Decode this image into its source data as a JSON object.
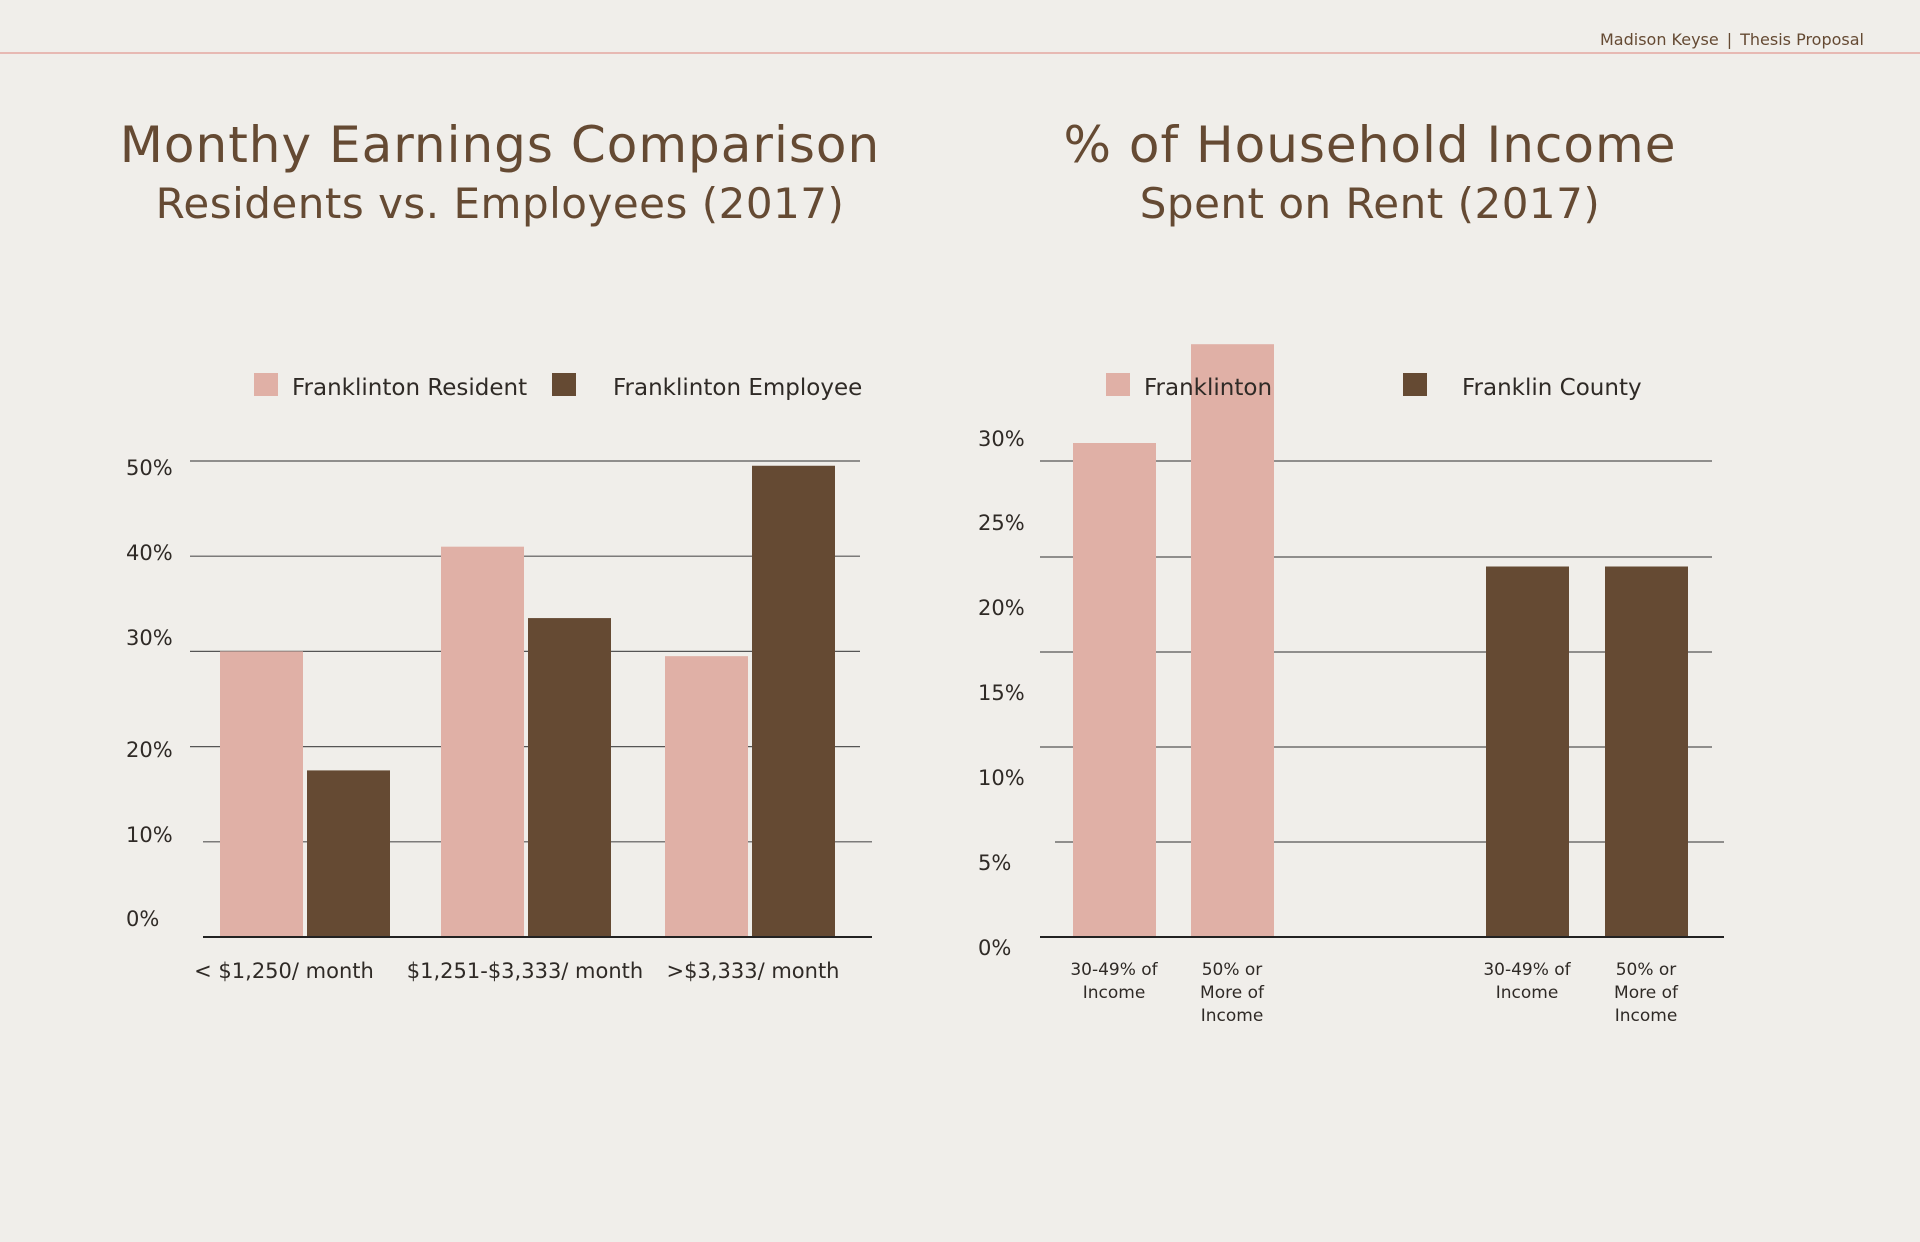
{
  "header": {
    "author": "Madison Keyse",
    "separator": "|",
    "doc": "Thesis Proposal"
  },
  "colors": {
    "resident": "#e0b0a6",
    "employee": "#654a33",
    "grid": "#555555",
    "text": "#2f2a26"
  },
  "chart_data": [
    {
      "type": "bar",
      "title": "Monthy Earnings Comparison",
      "subtitle": "Residents vs. Employees (2017)",
      "categories": [
        "< $1,250/ month",
        "$1,251-$3,333/ month",
        ">$3,333/ month"
      ],
      "series": [
        {
          "name": "Franklinton Resident",
          "values": [
            30,
            41,
            29.5
          ]
        },
        {
          "name": "Franklinton Employee",
          "values": [
            17.5,
            33.5,
            49.5
          ]
        }
      ],
      "yticks": [
        "0%",
        "10%",
        "20%",
        "30%",
        "40%",
        "50%"
      ],
      "ylim": [
        0,
        50
      ],
      "grid": true,
      "legend": "top"
    },
    {
      "type": "bar",
      "title": "% of Household Income",
      "subtitle": "Spent on Rent (2017)",
      "categories": [
        "30-49% of Income",
        "50% or More of Income",
        "30-49% of Income",
        "50% or More of Income"
      ],
      "series": [
        {
          "name": "Franklinton",
          "values": [
            26,
            31.2,
            null,
            null
          ]
        },
        {
          "name": "Franklin County",
          "values": [
            null,
            null,
            19.5,
            19.5
          ]
        }
      ],
      "yticks": [
        "0%",
        "5%",
        "10%",
        "15%",
        "20%",
        "25%",
        "30%"
      ],
      "ylim": [
        0,
        30
      ],
      "grid": true,
      "legend": "top"
    }
  ]
}
